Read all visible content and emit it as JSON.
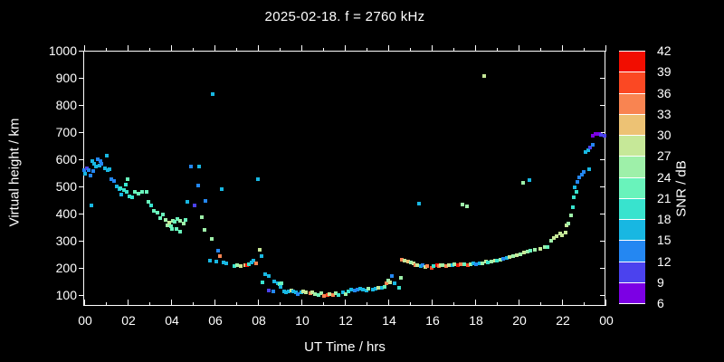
{
  "chart_data": {
    "type": "scatter",
    "title": "2025-02-18. f = 2760 kHz",
    "xlabel": "UT Time / hrs",
    "ylabel": "Virtual height / km",
    "xlim": [
      0,
      24
    ],
    "ylim": [
      60,
      1000
    ],
    "grid": false,
    "background": "#000000",
    "foreground": "#ffffff",
    "x_major_ticks": [
      0,
      2,
      4,
      6,
      8,
      10,
      12,
      14,
      16,
      18,
      20,
      22,
      24
    ],
    "x_major_labels": [
      "00",
      "02",
      "04",
      "06",
      "08",
      "10",
      "12",
      "14",
      "16",
      "18",
      "20",
      "22",
      "00"
    ],
    "x_minor_ticks": [
      1,
      3,
      5,
      7,
      9,
      11,
      13,
      15,
      17,
      19,
      21,
      23
    ],
    "y_ticks": [
      100,
      200,
      300,
      400,
      500,
      600,
      700,
      800,
      900,
      1000
    ],
    "y_tick_labels": [
      "100",
      "200",
      "300",
      "400",
      "500",
      "600",
      "700",
      "800",
      "900",
      "1000"
    ],
    "colorbar": {
      "label": "SNR / dB",
      "ticks": [
        6,
        9,
        12,
        15,
        18,
        21,
        24,
        27,
        30,
        33,
        36,
        39,
        42
      ],
      "segments": [
        {
          "min": 6,
          "max": 9,
          "color": "#7c00e4"
        },
        {
          "min": 9,
          "max": 12,
          "color": "#4b42ee"
        },
        {
          "min": 12,
          "max": 15,
          "color": "#2487f2"
        },
        {
          "min": 15,
          "max": 18,
          "color": "#18b7e2"
        },
        {
          "min": 18,
          "max": 21,
          "color": "#38e3ce"
        },
        {
          "min": 21,
          "max": 24,
          "color": "#69f3bb"
        },
        {
          "min": 24,
          "max": 27,
          "color": "#9ef0a9"
        },
        {
          "min": 27,
          "max": 30,
          "color": "#c6e898"
        },
        {
          "min": 30,
          "max": 33,
          "color": "#edc274"
        },
        {
          "min": 33,
          "max": 36,
          "color": "#f98451"
        },
        {
          "min": 36,
          "max": 39,
          "color": "#fb4823"
        },
        {
          "min": 39,
          "max": 42,
          "color": "#f20d00"
        }
      ]
    },
    "points_format": [
      "ut_hr",
      "virtual_height_km",
      "snr_db"
    ],
    "points": [
      [
        0.0,
        560,
        13
      ],
      [
        0.05,
        548,
        16
      ],
      [
        0.12,
        568,
        10
      ],
      [
        0.2,
        561,
        13
      ],
      [
        0.3,
        541,
        13
      ],
      [
        0.33,
        430,
        16
      ],
      [
        0.37,
        592,
        16
      ],
      [
        0.4,
        558,
        13
      ],
      [
        0.46,
        585,
        16
      ],
      [
        0.53,
        572,
        16
      ],
      [
        0.62,
        599,
        13
      ],
      [
        0.71,
        578,
        16
      ],
      [
        0.75,
        595,
        13
      ],
      [
        0.8,
        585,
        13
      ],
      [
        0.95,
        568,
        16
      ],
      [
        1.05,
        615,
        16
      ],
      [
        1.1,
        561,
        16
      ],
      [
        1.16,
        565,
        16
      ],
      [
        1.25,
        528,
        13
      ],
      [
        1.37,
        521,
        13
      ],
      [
        1.5,
        501,
        16
      ],
      [
        1.62,
        491,
        16
      ],
      [
        1.66,
        495,
        19
      ],
      [
        1.7,
        471,
        16
      ],
      [
        1.83,
        488,
        19
      ],
      [
        1.9,
        508,
        19
      ],
      [
        1.95,
        481,
        19
      ],
      [
        2.0,
        528,
        22
      ],
      [
        2.08,
        465,
        19
      ],
      [
        2.2,
        461,
        19
      ],
      [
        2.33,
        481,
        22
      ],
      [
        2.5,
        475,
        22
      ],
      [
        2.66,
        481,
        22
      ],
      [
        2.87,
        481,
        22
      ],
      [
        2.95,
        444,
        22
      ],
      [
        3.07,
        431,
        19
      ],
      [
        3.2,
        411,
        22
      ],
      [
        3.37,
        404,
        22
      ],
      [
        3.5,
        384,
        22
      ],
      [
        3.62,
        398,
        22
      ],
      [
        3.75,
        378,
        25
      ],
      [
        3.83,
        358,
        25
      ],
      [
        3.92,
        368,
        28
      ],
      [
        4.0,
        354,
        22
      ],
      [
        4.04,
        344,
        22
      ],
      [
        4.07,
        374,
        25
      ],
      [
        4.15,
        371,
        22
      ],
      [
        4.24,
        345,
        22
      ],
      [
        4.3,
        381,
        22
      ],
      [
        4.4,
        374,
        25
      ],
      [
        4.42,
        333,
        22
      ],
      [
        4.6,
        365,
        25
      ],
      [
        4.65,
        378,
        22
      ],
      [
        4.77,
        445,
        16
      ],
      [
        4.9,
        572,
        13
      ],
      [
        5.1,
        431,
        10
      ],
      [
        5.27,
        505,
        13
      ],
      [
        5.3,
        572,
        16
      ],
      [
        5.4,
        388,
        25
      ],
      [
        5.56,
        341,
        25
      ],
      [
        5.6,
        448,
        13
      ],
      [
        5.8,
        227,
        16
      ],
      [
        5.89,
        307,
        25
      ],
      [
        5.93,
        839,
        16
      ],
      [
        6.07,
        224,
        16
      ],
      [
        6.15,
        264,
        13
      ],
      [
        6.27,
        244,
        34
      ],
      [
        6.35,
        491,
        16
      ],
      [
        6.4,
        220,
        16
      ],
      [
        6.55,
        217,
        16
      ],
      [
        6.9,
        207,
        19
      ],
      [
        7.05,
        210,
        25
      ],
      [
        7.2,
        207,
        28
      ],
      [
        7.4,
        210,
        31
      ],
      [
        7.5,
        210,
        40
      ],
      [
        7.6,
        214,
        19
      ],
      [
        7.7,
        220,
        16
      ],
      [
        7.8,
        227,
        16
      ],
      [
        7.9,
        217,
        34
      ],
      [
        8.0,
        528,
        16
      ],
      [
        8.1,
        267,
        28
      ],
      [
        8.15,
        244,
        16
      ],
      [
        8.2,
        147,
        19
      ],
      [
        8.35,
        177,
        16
      ],
      [
        8.5,
        170,
        16
      ],
      [
        8.52,
        117,
        10
      ],
      [
        8.7,
        113,
        13
      ],
      [
        8.75,
        150,
        16
      ],
      [
        8.9,
        143,
        16
      ],
      [
        9.0,
        140,
        22
      ],
      [
        9.05,
        130,
        16
      ],
      [
        9.1,
        143,
        22
      ],
      [
        9.2,
        113,
        16
      ],
      [
        9.3,
        110,
        16
      ],
      [
        9.4,
        113,
        16
      ],
      [
        9.55,
        117,
        28
      ],
      [
        9.62,
        113,
        16
      ],
      [
        9.75,
        110,
        16
      ],
      [
        9.85,
        103,
        13
      ],
      [
        10.0,
        110,
        16
      ],
      [
        10.1,
        113,
        28
      ],
      [
        10.22,
        110,
        28
      ],
      [
        10.4,
        107,
        34
      ],
      [
        10.5,
        110,
        28
      ],
      [
        10.62,
        103,
        25
      ],
      [
        10.8,
        100,
        22
      ],
      [
        10.9,
        107,
        25
      ],
      [
        11.05,
        97,
        34
      ],
      [
        11.2,
        100,
        37
      ],
      [
        11.3,
        103,
        28
      ],
      [
        11.45,
        100,
        34
      ],
      [
        11.6,
        107,
        25
      ],
      [
        11.72,
        100,
        19
      ],
      [
        11.9,
        110,
        16
      ],
      [
        12.05,
        103,
        25
      ],
      [
        12.15,
        113,
        19
      ],
      [
        12.3,
        120,
        16
      ],
      [
        12.45,
        117,
        13
      ],
      [
        12.6,
        120,
        13
      ],
      [
        12.72,
        123,
        16
      ],
      [
        12.85,
        120,
        16
      ],
      [
        13.0,
        117,
        16
      ],
      [
        13.1,
        123,
        25
      ],
      [
        13.3,
        120,
        16
      ],
      [
        13.42,
        123,
        16
      ],
      [
        13.55,
        127,
        28
      ],
      [
        13.7,
        127,
        16
      ],
      [
        13.85,
        130,
        22
      ],
      [
        13.92,
        143,
        34
      ],
      [
        14.0,
        153,
        25
      ],
      [
        14.1,
        147,
        28
      ],
      [
        14.15,
        170,
        13
      ],
      [
        14.3,
        143,
        16
      ],
      [
        14.5,
        127,
        19
      ],
      [
        14.6,
        163,
        25
      ],
      [
        14.62,
        230,
        34
      ],
      [
        14.75,
        227,
        28
      ],
      [
        14.9,
        224,
        31
      ],
      [
        15.05,
        220,
        25
      ],
      [
        15.15,
        217,
        28
      ],
      [
        15.25,
        210,
        34
      ],
      [
        15.35,
        210,
        28
      ],
      [
        15.4,
        438,
        16
      ],
      [
        15.5,
        207,
        16
      ],
      [
        15.6,
        210,
        13
      ],
      [
        15.7,
        203,
        28
      ],
      [
        15.8,
        207,
        34
      ],
      [
        16.0,
        200,
        37
      ],
      [
        16.1,
        207,
        19
      ],
      [
        16.25,
        210,
        40
      ],
      [
        16.32,
        207,
        34
      ],
      [
        16.4,
        210,
        28
      ],
      [
        16.5,
        210,
        25
      ],
      [
        16.65,
        207,
        34
      ],
      [
        16.8,
        210,
        28
      ],
      [
        16.95,
        210,
        16
      ],
      [
        17.05,
        214,
        25
      ],
      [
        17.2,
        210,
        40
      ],
      [
        17.35,
        214,
        34
      ],
      [
        17.42,
        434,
        25
      ],
      [
        17.5,
        214,
        22
      ],
      [
        17.62,
        428,
        25
      ],
      [
        17.65,
        210,
        37
      ],
      [
        17.8,
        214,
        25
      ],
      [
        17.9,
        217,
        16
      ],
      [
        18.05,
        214,
        13
      ],
      [
        18.2,
        217,
        16
      ],
      [
        18.32,
        217,
        25
      ],
      [
        18.42,
        906,
        28
      ],
      [
        18.5,
        224,
        28
      ],
      [
        18.6,
        220,
        19
      ],
      [
        18.75,
        224,
        25
      ],
      [
        18.9,
        227,
        28
      ],
      [
        19.0,
        227,
        19
      ],
      [
        19.15,
        230,
        25
      ],
      [
        19.3,
        234,
        13
      ],
      [
        19.45,
        237,
        16
      ],
      [
        19.6,
        240,
        28
      ],
      [
        19.75,
        244,
        25
      ],
      [
        19.9,
        247,
        28
      ],
      [
        20.1,
        250,
        25
      ],
      [
        20.2,
        512,
        25
      ],
      [
        20.25,
        257,
        28
      ],
      [
        20.4,
        260,
        25
      ],
      [
        20.5,
        525,
        16
      ],
      [
        20.55,
        264,
        22
      ],
      [
        20.75,
        267,
        25
      ],
      [
        21.0,
        270,
        28
      ],
      [
        21.2,
        277,
        25
      ],
      [
        21.35,
        277,
        22
      ],
      [
        21.5,
        301,
        25
      ],
      [
        21.62,
        311,
        28
      ],
      [
        21.75,
        318,
        28
      ],
      [
        21.9,
        327,
        28
      ],
      [
        22.0,
        321,
        28
      ],
      [
        22.15,
        331,
        28
      ],
      [
        22.22,
        358,
        28
      ],
      [
        22.3,
        364,
        25
      ],
      [
        22.4,
        394,
        25
      ],
      [
        22.5,
        425,
        19
      ],
      [
        22.55,
        461,
        19
      ],
      [
        22.6,
        498,
        16
      ],
      [
        22.65,
        481,
        19
      ],
      [
        22.7,
        518,
        13
      ],
      [
        22.8,
        532,
        13
      ],
      [
        22.9,
        545,
        13
      ],
      [
        23.0,
        552,
        13
      ],
      [
        23.1,
        628,
        16
      ],
      [
        23.2,
        632,
        16
      ],
      [
        23.25,
        565,
        16
      ],
      [
        23.3,
        645,
        10
      ],
      [
        23.4,
        655,
        13
      ],
      [
        23.42,
        688,
        7
      ],
      [
        23.55,
        692,
        7
      ],
      [
        23.7,
        695,
        7
      ],
      [
        23.8,
        690,
        10
      ],
      [
        23.95,
        688,
        10
      ]
    ]
  }
}
